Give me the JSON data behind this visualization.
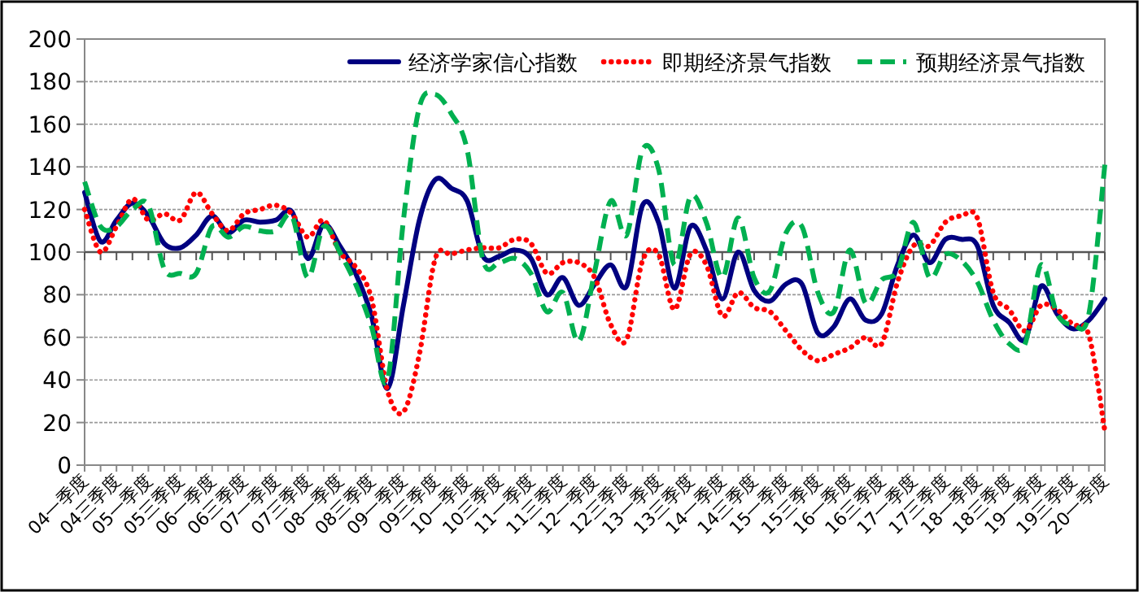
{
  "chart_data": {
    "type": "line",
    "categories": [
      "04一季度",
      null,
      "04三季度",
      null,
      "05一季度",
      null,
      "05三季度",
      null,
      "06一季度",
      null,
      "06三季度",
      null,
      "07一季度",
      null,
      "07三季度",
      null,
      "08一季度",
      null,
      "08三季度",
      null,
      "09一季度",
      null,
      "09三季度",
      null,
      "10一季度",
      null,
      "10三季度",
      null,
      "11一季度",
      null,
      "11三季度",
      null,
      "12一季度",
      null,
      "12三季度",
      null,
      "13一季度",
      null,
      "13三季度",
      null,
      "14一季度",
      null,
      "14三季度",
      null,
      "15一季度",
      null,
      "15三季度",
      null,
      "16一季度",
      null,
      "16三季度",
      null,
      "17一季度",
      null,
      "17三季度",
      null,
      "18一季度",
      null,
      "18三季度",
      null,
      "19一季度",
      null,
      "19三季度",
      null,
      "20一季度"
    ],
    "series": [
      {
        "name": "经济学家信心指数",
        "color": "#000080",
        "line_style": "solid",
        "values": [
          128,
          105,
          115,
          123,
          117,
          104,
          102,
          108,
          117,
          109,
          115,
          114,
          115,
          119,
          97,
          113,
          103,
          90,
          70,
          36,
          75,
          115,
          134,
          130,
          124,
          98,
          98,
          101,
          97,
          80,
          88,
          75,
          85,
          94,
          84,
          122,
          114,
          83,
          112,
          101,
          78,
          100,
          82,
          77,
          85,
          85,
          62,
          65,
          78,
          68,
          71,
          94,
          108,
          95,
          106,
          106,
          103,
          75,
          67,
          59,
          84,
          71,
          64,
          68,
          78
        ]
      },
      {
        "name": "即期经济景气指数",
        "color": "#ff0000",
        "line_style": "dotted",
        "values": [
          120,
          100,
          112,
          125,
          115,
          118,
          115,
          128,
          118,
          110,
          118,
          120,
          122,
          118,
          107,
          115,
          100,
          93,
          78,
          35,
          25,
          52,
          97,
          99,
          101,
          102,
          102,
          106,
          104,
          90,
          95,
          95,
          88,
          66,
          59,
          96,
          99,
          73,
          99,
          94,
          70,
          81,
          74,
          72,
          63,
          54,
          49,
          52,
          55,
          60,
          57,
          86,
          103,
          103,
          114,
          117,
          116,
          81,
          73,
          63,
          75,
          73,
          66,
          61,
          16
        ]
      },
      {
        "name": "预期经济景气指数",
        "color": "#00b050",
        "line_style": "dashed",
        "values": [
          133,
          112,
          112,
          120,
          122,
          92,
          90,
          90,
          112,
          107,
          112,
          110,
          110,
          117,
          88,
          112,
          100,
          85,
          65,
          40,
          115,
          168,
          174,
          165,
          148,
          96,
          95,
          97,
          90,
          72,
          81,
          58,
          91,
          124,
          108,
          148,
          139,
          94,
          126,
          114,
          88,
          116,
          88,
          82,
          109,
          112,
          81,
          72,
          101,
          76,
          87,
          91,
          114,
          88,
          99,
          96,
          86,
          68,
          57,
          57,
          94,
          71,
          66,
          71,
          141
        ]
      }
    ],
    "ylim": [
      0,
      200
    ],
    "yticks": [
      0,
      20,
      40,
      60,
      80,
      100,
      120,
      140,
      160,
      180,
      200
    ],
    "grid": "y",
    "legend": "top right",
    "ref_lines": [
      {
        "axis": "y",
        "value": 100
      }
    ]
  }
}
